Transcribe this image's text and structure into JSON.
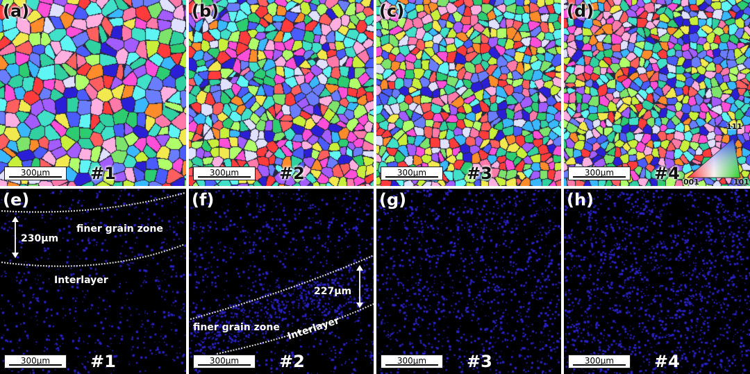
{
  "panels": [
    {
      "label": "(a)",
      "sample": "#1",
      "scale": "300μm",
      "type": "ebsd"
    },
    {
      "label": "(b)",
      "sample": "#2",
      "scale": "300μm",
      "type": "ebsd"
    },
    {
      "label": "(c)",
      "sample": "#3",
      "scale": "300μm",
      "type": "ebsd"
    },
    {
      "label": "(d)",
      "sample": "#4",
      "scale": "300μm",
      "type": "ebsd"
    },
    {
      "label": "(e)",
      "sample": "#1",
      "scale": "300μm",
      "type": "dots"
    },
    {
      "label": "(f)",
      "sample": "#2",
      "scale": "300μm",
      "type": "dots"
    },
    {
      "label": "(g)",
      "sample": "#3",
      "scale": "300μm",
      "type": "dots"
    },
    {
      "label": "(h)",
      "sample": "#4",
      "scale": "300μm",
      "type": "dots"
    }
  ],
  "annotations": {
    "e_zone": "finer grain zone",
    "e_width": "230μm",
    "e_interlayer": "Interlayer",
    "f_zone": "finer grain zone",
    "f_width": "227μm",
    "f_interlayer": "Interlayer"
  },
  "ipf_legend": {
    "top": "111",
    "left": "001",
    "right": "101"
  },
  "colors": {
    "dot": "#2a22c8",
    "background_dark": "#000000",
    "dashed_line": "#cfcfcf"
  }
}
